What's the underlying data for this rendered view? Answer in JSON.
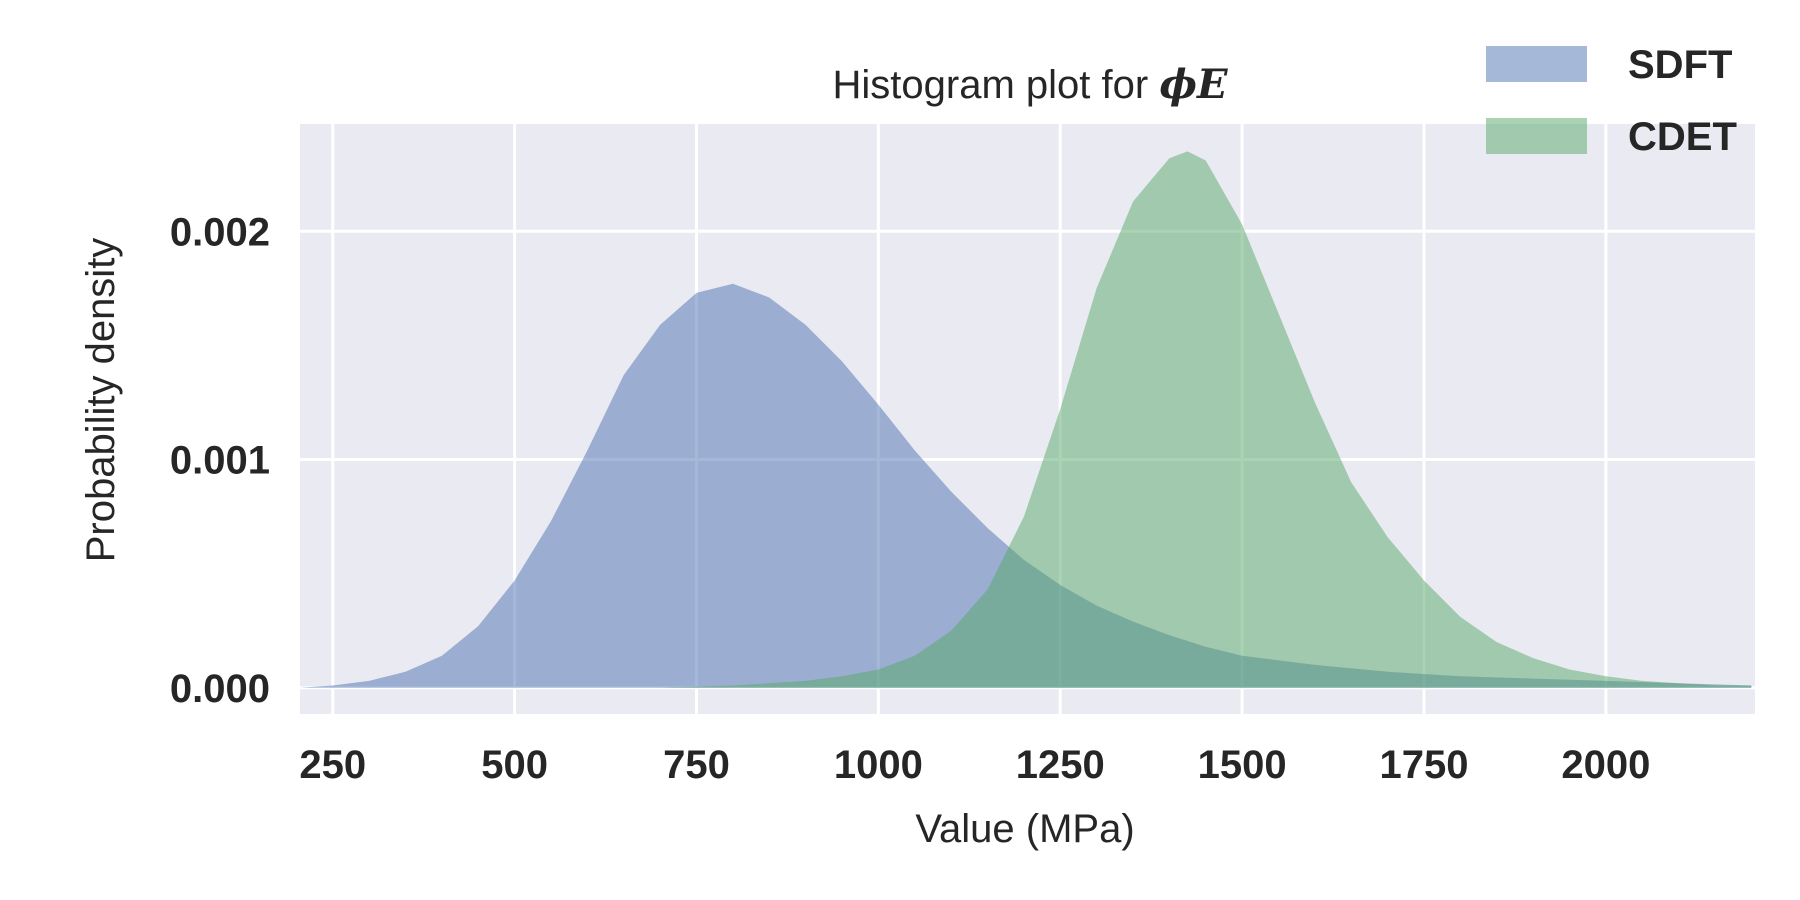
{
  "chart_data": {
    "type": "area",
    "title_prefix": "Histogram plot for ",
    "title_symbol": "ϕE",
    "xlabel": "Value (MPa)",
    "ylabel": "Probability density",
    "xlim": [
      205,
      2205
    ],
    "ylim": [
      -0.000115,
      0.00247
    ],
    "xticks": [
      250,
      500,
      750,
      1000,
      1250,
      1500,
      1750,
      2000
    ],
    "xtick_labels": [
      "250",
      "500",
      "750",
      "1000",
      "1250",
      "1500",
      "1750",
      "2000"
    ],
    "yticks": [
      0.0,
      0.001,
      0.002
    ],
    "ytick_labels": [
      "0.000",
      "0.001",
      "0.002"
    ],
    "grid": true,
    "legend_position": "top-right, outside plot",
    "background_color": "#eaeaf2",
    "series": [
      {
        "name": "SDFT",
        "color": "#4c72b0",
        "opacity": 0.5,
        "x": [
          205,
          250,
          300,
          350,
          400,
          450,
          500,
          550,
          600,
          650,
          700,
          750,
          800,
          850,
          900,
          950,
          1000,
          1050,
          1100,
          1150,
          1200,
          1250,
          1300,
          1350,
          1400,
          1450,
          1500,
          1600,
          1700,
          1800,
          1900,
          2000,
          2100,
          2200
        ],
        "values": [
          0.0,
          1e-05,
          3e-05,
          7e-05,
          0.00014,
          0.00027,
          0.00047,
          0.00073,
          0.00104,
          0.00137,
          0.00159,
          0.00173,
          0.00177,
          0.00171,
          0.00159,
          0.00143,
          0.00124,
          0.00104,
          0.00086,
          0.0007,
          0.00056,
          0.00045,
          0.00036,
          0.00029,
          0.00023,
          0.00018,
          0.00014,
          0.0001,
          7e-05,
          5e-05,
          4e-05,
          3e-05,
          2e-05,
          1e-05
        ]
      },
      {
        "name": "CDET",
        "color": "#55a868",
        "opacity": 0.5,
        "x": [
          700,
          800,
          900,
          950,
          1000,
          1050,
          1100,
          1150,
          1200,
          1250,
          1300,
          1350,
          1400,
          1425,
          1450,
          1500,
          1550,
          1600,
          1650,
          1700,
          1750,
          1800,
          1850,
          1900,
          1950,
          2000,
          2050,
          2100,
          2150,
          2200
        ],
        "values": [
          0.0,
          1e-05,
          3e-05,
          5e-05,
          8e-05,
          0.00014,
          0.00025,
          0.00043,
          0.00075,
          0.00122,
          0.00175,
          0.00213,
          0.00232,
          0.00235,
          0.00231,
          0.00203,
          0.00164,
          0.00125,
          0.0009,
          0.00066,
          0.00047,
          0.00031,
          0.0002,
          0.00013,
          8e-05,
          5e-05,
          3e-05,
          2e-05,
          1e-05,
          1e-05
        ]
      }
    ]
  }
}
